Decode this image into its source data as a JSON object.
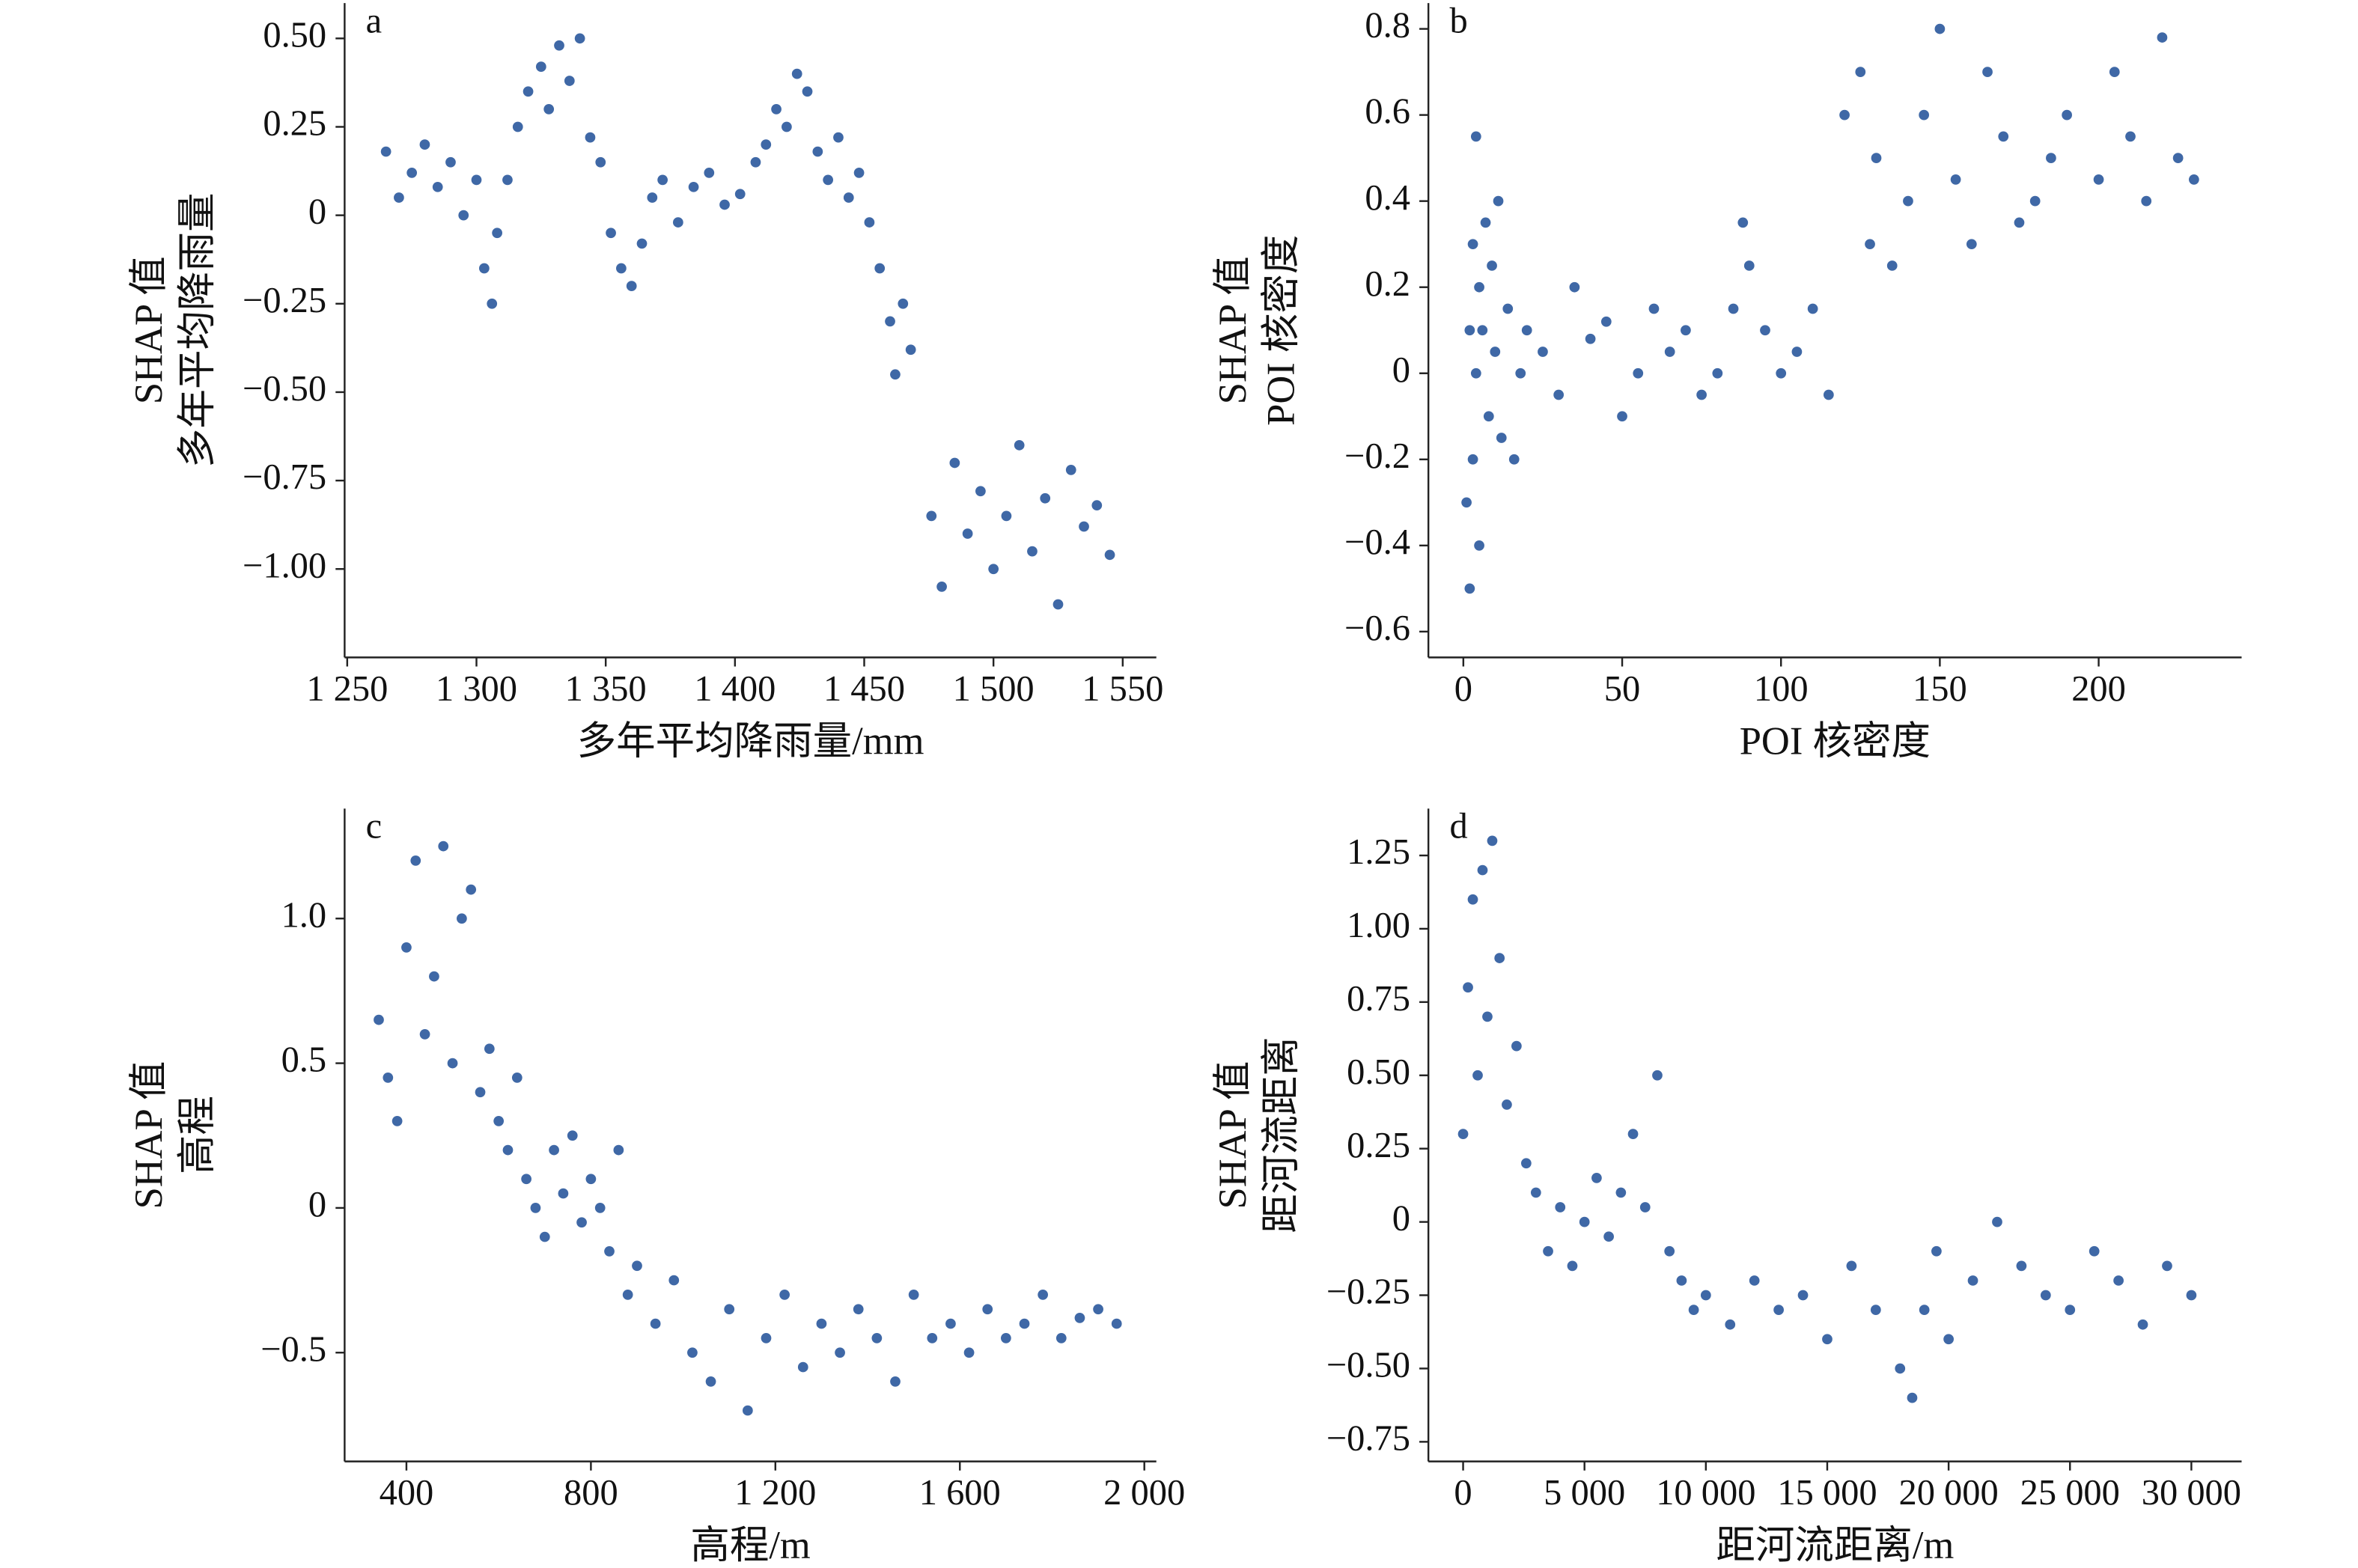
{
  "chart_data": [
    {
      "type": "scatter",
      "label": "a",
      "xlabel": "多年平均降雨量/mm",
      "ylabel": [
        "SHAP 值",
        "多年平均降雨量"
      ],
      "color": "#3f68a6",
      "xlim": [
        1249,
        1563
      ],
      "ylim": [
        -1.25,
        0.6
      ],
      "xticks": [
        {
          "value": 1250,
          "label": "1 250"
        },
        {
          "value": 1300,
          "label": "1 300"
        },
        {
          "value": 1350,
          "label": "1 350"
        },
        {
          "value": 1400,
          "label": "1 400"
        },
        {
          "value": 1450,
          "label": "1 450"
        },
        {
          "value": 1500,
          "label": "1 500"
        },
        {
          "value": 1550,
          "label": "1 550"
        }
      ],
      "yticks": [
        {
          "value": 0.5,
          "label": "0.50"
        },
        0.25,
        0,
        {
          "value": -0.25,
          "label": "−0.25"
        },
        {
          "value": -0.5,
          "label": "−0.50"
        },
        {
          "value": -0.75,
          "label": "−0.75"
        },
        {
          "value": -1,
          "label": "−1.00"
        }
      ],
      "x": [
        1265,
        1270,
        1275,
        1280,
        1285,
        1290,
        1295,
        1300,
        1303,
        1306,
        1308,
        1312,
        1316,
        1320,
        1325,
        1328,
        1332,
        1336,
        1340,
        1344,
        1348,
        1352,
        1356,
        1360,
        1364,
        1368,
        1372,
        1378,
        1384,
        1390,
        1396,
        1402,
        1408,
        1412,
        1416,
        1420,
        1424,
        1428,
        1432,
        1436,
        1440,
        1444,
        1448,
        1452,
        1456,
        1460,
        1462,
        1465,
        1468,
        1476,
        1480,
        1485,
        1490,
        1495,
        1500,
        1505,
        1510,
        1515,
        1520,
        1525,
        1530,
        1535,
        1540,
        1545
      ],
      "values": [
        0.18,
        0.05,
        0.12,
        0.2,
        0.08,
        0.15,
        0.0,
        0.1,
        -0.15,
        -0.25,
        -0.05,
        0.1,
        0.25,
        0.35,
        0.42,
        0.3,
        0.48,
        0.38,
        0.5,
        0.22,
        0.15,
        -0.05,
        -0.15,
        -0.2,
        -0.08,
        0.05,
        0.1,
        -0.02,
        0.08,
        0.12,
        0.03,
        0.06,
        0.15,
        0.2,
        0.3,
        0.25,
        0.4,
        0.35,
        0.18,
        0.1,
        0.22,
        0.05,
        0.12,
        -0.02,
        -0.15,
        -0.3,
        -0.45,
        -0.25,
        -0.38,
        -0.85,
        -1.05,
        -0.7,
        -0.9,
        -0.78,
        -1.0,
        -0.85,
        -0.65,
        -0.95,
        -0.8,
        -1.1,
        -0.72,
        -0.88,
        -0.82,
        -0.96
      ]
    },
    {
      "type": "scatter",
      "label": "b",
      "xlabel": "POI 核密度",
      "ylabel": [
        "SHAP 值",
        "POI 核密度"
      ],
      "color": "#3f68a6",
      "xlim": [
        -11,
        245
      ],
      "ylim": [
        -0.66,
        0.86
      ],
      "xticks": [
        0,
        50,
        100,
        150,
        200
      ],
      "yticks": [
        0.8,
        0.6,
        0.4,
        0.2,
        0,
        {
          "value": -0.2,
          "label": "−0.2"
        },
        {
          "value": -0.4,
          "label": "−0.4"
        },
        {
          "value": -0.6,
          "label": "−0.6"
        }
      ],
      "x": [
        1,
        2,
        2,
        3,
        3,
        4,
        4,
        5,
        5,
        6,
        7,
        8,
        9,
        10,
        11,
        12,
        14,
        16,
        18,
        20,
        25,
        30,
        35,
        40,
        45,
        50,
        55,
        60,
        65,
        70,
        75,
        80,
        85,
        88,
        90,
        95,
        100,
        105,
        110,
        115,
        120,
        125,
        128,
        130,
        135,
        140,
        145,
        150,
        155,
        160,
        165,
        170,
        175,
        180,
        185,
        190,
        200,
        205,
        210,
        215,
        220,
        225,
        230
      ],
      "values": [
        -0.3,
        0.1,
        -0.5,
        0.3,
        -0.2,
        0.55,
        0.0,
        0.2,
        -0.4,
        0.1,
        0.35,
        -0.1,
        0.25,
        0.05,
        0.4,
        -0.15,
        0.15,
        -0.2,
        0.0,
        0.1,
        0.05,
        -0.05,
        0.2,
        0.08,
        0.12,
        -0.1,
        0.0,
        0.15,
        0.05,
        0.1,
        -0.05,
        0.0,
        0.15,
        0.35,
        0.25,
        0.1,
        0.0,
        0.05,
        0.15,
        -0.05,
        0.6,
        0.7,
        0.3,
        0.5,
        0.25,
        0.4,
        0.6,
        0.8,
        0.45,
        0.3,
        0.7,
        0.55,
        0.35,
        0.4,
        0.5,
        0.6,
        0.45,
        0.7,
        0.55,
        0.4,
        0.78,
        0.5,
        0.45
      ]
    },
    {
      "type": "scatter",
      "label": "c",
      "xlabel": "高程/m",
      "ylabel": [
        "SHAP 值",
        "高程"
      ],
      "color": "#3f68a6",
      "xlim": [
        266,
        2026
      ],
      "ylim": [
        -0.876,
        1.38
      ],
      "xticks": [
        400,
        800,
        {
          "value": 1200,
          "label": "1 200"
        },
        {
          "value": 1600,
          "label": "1 600"
        },
        {
          "value": 2000,
          "label": "2 000"
        }
      ],
      "yticks": [
        {
          "value": 1,
          "label": "1.0"
        },
        0.5,
        0,
        {
          "value": -0.5,
          "label": "−0.5"
        }
      ],
      "x": [
        340,
        360,
        380,
        400,
        420,
        440,
        460,
        480,
        500,
        520,
        540,
        560,
        580,
        600,
        620,
        640,
        660,
        680,
        700,
        720,
        740,
        760,
        780,
        800,
        820,
        840,
        860,
        880,
        900,
        940,
        980,
        1020,
        1060,
        1100,
        1140,
        1180,
        1220,
        1260,
        1300,
        1340,
        1380,
        1420,
        1460,
        1500,
        1540,
        1580,
        1620,
        1660,
        1700,
        1740,
        1780,
        1820,
        1860,
        1900,
        1940
      ],
      "values": [
        0.65,
        0.45,
        0.3,
        0.9,
        1.2,
        0.6,
        0.8,
        1.25,
        0.5,
        1.0,
        1.1,
        0.4,
        0.55,
        0.3,
        0.2,
        0.45,
        0.1,
        0.0,
        -0.1,
        0.2,
        0.05,
        0.25,
        -0.05,
        0.1,
        0.0,
        -0.15,
        0.2,
        -0.3,
        -0.2,
        -0.4,
        -0.25,
        -0.5,
        -0.6,
        -0.35,
        -0.7,
        -0.45,
        -0.3,
        -0.55,
        -0.4,
        -0.5,
        -0.35,
        -0.45,
        -0.6,
        -0.3,
        -0.45,
        -0.4,
        -0.5,
        -0.35,
        -0.45,
        -0.4,
        -0.3,
        -0.45,
        -0.38,
        -0.35,
        -0.4
      ]
    },
    {
      "type": "scatter",
      "label": "d",
      "xlabel": "距河流距离/m",
      "ylabel": [
        "SHAP 值",
        "距河流距离"
      ],
      "color": "#3f68a6",
      "xlim": [
        -1430,
        32070
      ],
      "ylim": [
        -0.817,
        1.41
      ],
      "xticks": [
        0,
        {
          "value": 5000,
          "label": "5 000"
        },
        {
          "value": 10000,
          "label": "10 000"
        },
        {
          "value": 15000,
          "label": "15 000"
        },
        {
          "value": 20000,
          "label": "20 000"
        },
        {
          "value": 25000,
          "label": "25 000"
        },
        {
          "value": 30000,
          "label": "30 000"
        }
      ],
      "yticks": [
        1.25,
        {
          "value": 1,
          "label": "1.00"
        },
        0.75,
        {
          "value": 0.5,
          "label": "0.50"
        },
        0.25,
        0,
        {
          "value": -0.25,
          "label": "−0.25"
        },
        {
          "value": -0.5,
          "label": "−0.50"
        },
        {
          "value": -0.75,
          "label": "−0.75"
        }
      ],
      "x": [
        0,
        200,
        400,
        600,
        800,
        1000,
        1200,
        1500,
        1800,
        2200,
        2600,
        3000,
        3500,
        4000,
        4500,
        5000,
        5500,
        6000,
        6500,
        7000,
        7500,
        8000,
        8500,
        9000,
        9500,
        10000,
        11000,
        12000,
        13000,
        14000,
        15000,
        16000,
        17000,
        18000,
        18500,
        19000,
        19500,
        20000,
        21000,
        22000,
        23000,
        24000,
        25000,
        26000,
        27000,
        28000,
        29000,
        30000
      ],
      "values": [
        0.3,
        0.8,
        1.1,
        0.5,
        1.2,
        0.7,
        1.3,
        0.9,
        0.4,
        0.6,
        0.2,
        0.1,
        -0.1,
        0.05,
        -0.15,
        0.0,
        0.15,
        -0.05,
        0.1,
        0.3,
        0.05,
        0.5,
        -0.1,
        -0.2,
        -0.3,
        -0.25,
        -0.35,
        -0.2,
        -0.3,
        -0.25,
        -0.4,
        -0.15,
        -0.3,
        -0.5,
        -0.6,
        -0.3,
        -0.1,
        -0.4,
        -0.2,
        0.0,
        -0.15,
        -0.25,
        -0.3,
        -0.1,
        -0.2,
        -0.35,
        -0.15,
        -0.25
      ]
    }
  ]
}
